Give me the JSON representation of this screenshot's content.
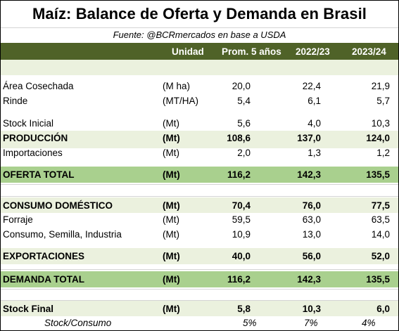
{
  "title": "Maíz: Balance de Oferta y Demanda en Brasil",
  "source": "Fuente: @BCRmercados en base a USDA",
  "header": {
    "unit": "Unidad",
    "col1": "Prom. 5 años",
    "col2": "2022/23",
    "col3": "2023/24"
  },
  "rows": {
    "area": {
      "label": "Área Cosechada",
      "unit": "(M ha)",
      "v1": "20,0",
      "v2": "22,4",
      "v3": "21,9"
    },
    "rinde": {
      "label": "Rinde",
      "unit": "(MT/HA)",
      "v1": "5,4",
      "v2": "6,1",
      "v3": "5,7"
    },
    "stock_inicial": {
      "label": "Stock Inicial",
      "unit": "(Mt)",
      "v1": "5,6",
      "v2": "4,0",
      "v3": "10,3"
    },
    "produccion": {
      "label": "PRODUCCIÓN",
      "unit": "(Mt)",
      "v1": "108,6",
      "v2": "137,0",
      "v3": "124,0"
    },
    "importaciones": {
      "label": "Importaciones",
      "unit": "(Mt)",
      "v1": "2,0",
      "v2": "1,3",
      "v3": "1,2"
    },
    "oferta_total": {
      "label": "OFERTA TOTAL",
      "unit": "(Mt)",
      "v1": "116,2",
      "v2": "142,3",
      "v3": "135,5"
    },
    "consumo_domestico": {
      "label": "CONSUMO DOMÉSTICO",
      "unit": "(Mt)",
      "v1": "70,4",
      "v2": "76,0",
      "v3": "77,5"
    },
    "forraje": {
      "label": "Forraje",
      "unit": "(Mt)",
      "v1": "59,5",
      "v2": "63,0",
      "v3": "63,5"
    },
    "consumo_semilla": {
      "label": "Consumo, Semilla, Industria",
      "unit": "(Mt)",
      "v1": "10,9",
      "v2": "13,0",
      "v3": "14,0"
    },
    "exportaciones": {
      "label": "EXPORTACIONES",
      "unit": "(Mt)",
      "v1": "40,0",
      "v2": "56,0",
      "v3": "52,0"
    },
    "demanda_total": {
      "label": "DEMANDA TOTAL",
      "unit": "(Mt)",
      "v1": "116,2",
      "v2": "142,3",
      "v3": "135,5"
    },
    "stock_final": {
      "label": "Stock Final",
      "unit": "(Mt)",
      "v1": "5,8",
      "v2": "10,3",
      "v3": "6,0"
    },
    "stock_consumo": {
      "label": "Stock/Consumo",
      "v1": "5%",
      "v2": "7%",
      "v3": "4%"
    }
  },
  "colors": {
    "header_bg": "#4f6228",
    "band_green": "#a9d08e",
    "band_light": "#ebf1de"
  }
}
